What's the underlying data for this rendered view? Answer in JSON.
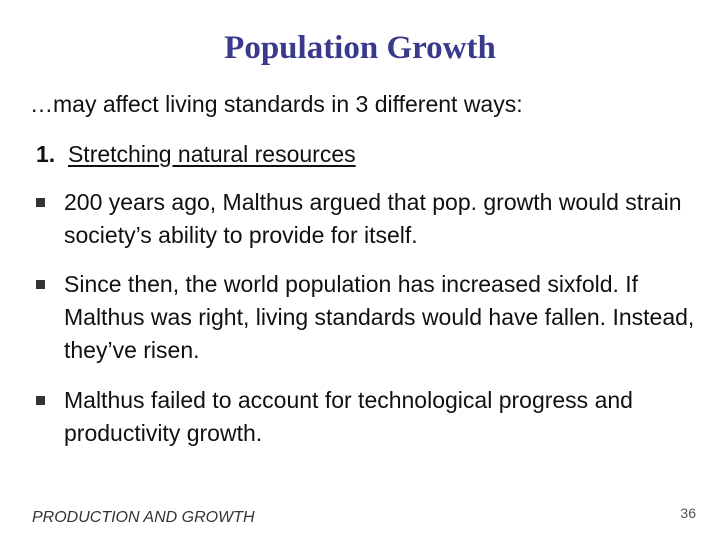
{
  "slide": {
    "title": "Population Growth",
    "intro": "…may affect living standards in 3 different ways:",
    "heading": {
      "number": "1.",
      "text": "Stretching natural resources"
    },
    "bullets": [
      "200 years ago, Malthus argued that pop. growth would strain society’s ability to provide for itself.",
      "Since then, the world population has increased sixfold.  If Malthus was right, living standards would have fallen. Instead, they’ve risen.",
      "Malthus failed to account for technological progress and productivity growth."
    ],
    "footer": "PRODUCTION AND GROWTH",
    "page_number": "36",
    "colors": {
      "title": "#3a3a8c",
      "text": "#111111"
    }
  }
}
